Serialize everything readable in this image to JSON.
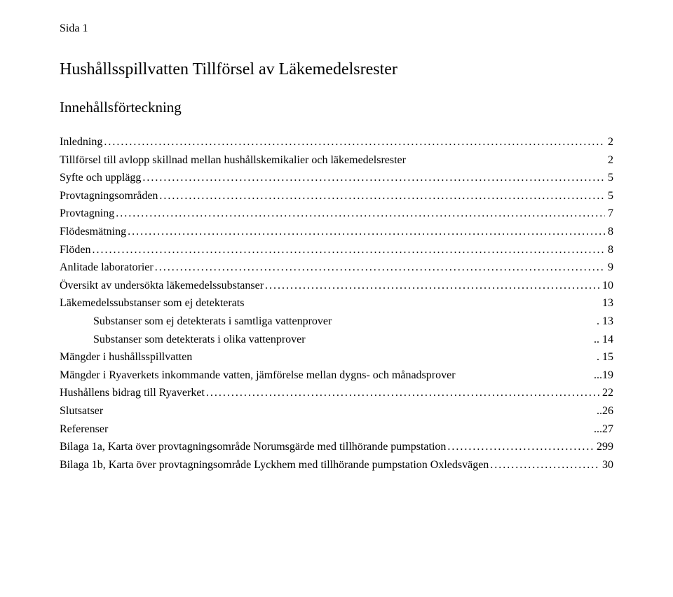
{
  "page_label": "Sida 1",
  "title": "Hushållsspillvatten   Tillförsel av Läkemedelsrester",
  "toc_heading": "Innehållsförteckning",
  "toc": [
    {
      "label": "Inledning",
      "page": "2",
      "indent": 0,
      "leader": "dots",
      "prefix": "",
      "suffix": " "
    },
    {
      "label": "Tillförsel till avlopp   skillnad mellan hushållskemikalier och läkemedelsrester",
      "page": "2",
      "indent": 0,
      "leader": "solid",
      "prefix": "",
      "suffix": ""
    },
    {
      "label": "Syfte och upplägg",
      "page": "5",
      "indent": 0,
      "leader": "dots",
      "prefix": "",
      "suffix": " "
    },
    {
      "label": "Provtagningsområden",
      "page": "5",
      "indent": 0,
      "leader": "dots",
      "prefix": "",
      "suffix": " "
    },
    {
      "label": "Provtagning",
      "page": "7",
      "indent": 0,
      "leader": "dots",
      "prefix": "",
      "suffix": " "
    },
    {
      "label": "Flödesmätning",
      "page": "8",
      "indent": 0,
      "leader": "dots",
      "prefix": "",
      "suffix": " "
    },
    {
      "label": "Flöden",
      "page": "8",
      "indent": 0,
      "leader": "dots",
      "prefix": "",
      "suffix": " "
    },
    {
      "label": "Anlitade laboratorier",
      "page": "9",
      "indent": 0,
      "leader": "dots",
      "prefix": "",
      "suffix": " "
    },
    {
      "label": "Översikt av undersökta läkemedelssubstanser",
      "page": "10",
      "indent": 0,
      "leader": "dots",
      "prefix": "",
      "suffix": " "
    },
    {
      "label": "Läkemedelssubstanser som ej detekterats",
      "page": "13",
      "indent": 0,
      "leader": "solid",
      "prefix": "",
      "suffix": " "
    },
    {
      "label": "Substanser som ej detekterats i samtliga vattenprover",
      "page": "13",
      "indent": 1,
      "leader": "solid",
      "prefix": "",
      "suffix": ". "
    },
    {
      "label": "Substanser som detekterats i olika vattenprover",
      "page": "14",
      "indent": 1,
      "leader": "solid",
      "prefix": "",
      "suffix": ".. "
    },
    {
      "label": "Mängder i hushållsspillvatten",
      "page": "15",
      "indent": 0,
      "leader": "solid",
      "prefix": "",
      "suffix": ". "
    },
    {
      "label": "Mängder i Ryaverkets inkommande vatten, jämförelse mellan dygns- och månadsprover",
      "page": "19",
      "indent": 0,
      "leader": "solid",
      "prefix": "",
      "suffix": "..."
    },
    {
      "label": "Hushållens bidrag till Ryaverket",
      "page": "22",
      "indent": 0,
      "leader": "dots",
      "prefix": "",
      "suffix": " "
    },
    {
      "label": "Slutsatser",
      "page": "26",
      "indent": 0,
      "leader": "solid",
      "prefix": "",
      "suffix": ".."
    },
    {
      "label": "Referenser",
      "page": "27",
      "indent": 0,
      "leader": "solid",
      "prefix": "",
      "suffix": "..."
    },
    {
      "label": "Bilaga 1a, Karta över provtagningsområde Norumsgärde med tillhörande pumpstation",
      "page": "299",
      "indent": 0,
      "leader": "dots",
      "prefix": "",
      "suffix": " "
    },
    {
      "label": "Bilaga 1b, Karta över provtagningsområde Lyckhem med tillhörande pumpstation Oxledsvägen",
      "page": "30",
      "indent": 0,
      "leader": "dots",
      "prefix": "",
      "suffix": " "
    }
  ]
}
